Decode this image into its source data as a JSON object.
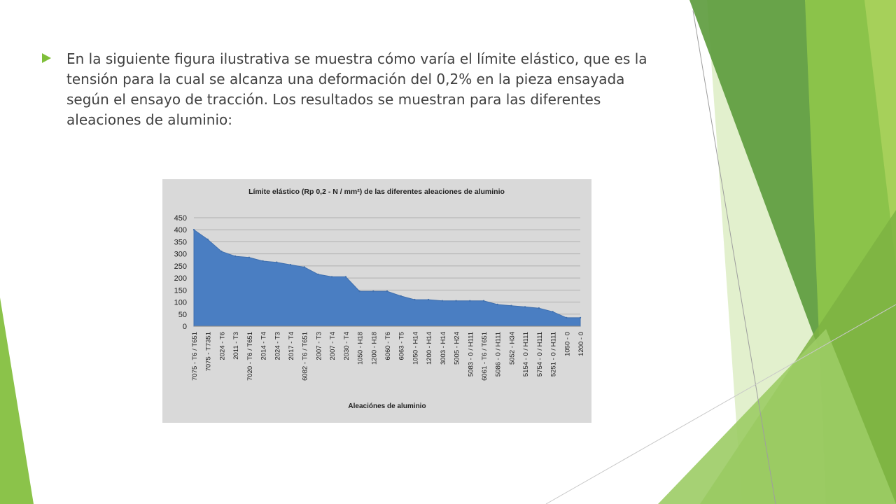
{
  "slide": {
    "bullet_text": "En la siguiente figura ilustrativa se muestra cómo varía el límite elástico, que es la tensión para la cual se alcanza una deformación del 0,2% en la pieza ensayada según el ensayo de tracción. Los resultados se muestran para las diferentes aleaciones de aluminio:",
    "accent_color": "#7fbf3a",
    "bullet_icon": "triangle-arrow-bullet"
  },
  "chart_data": {
    "type": "area",
    "title": "Límite elástico (Rp 0,2 - N / mm²) de las diferentes aleaciones de aluminio",
    "xlabel": "Aleaciónes de aluminio",
    "ylabel": "",
    "ylim": [
      0,
      450
    ],
    "yticks": [
      0,
      50,
      100,
      150,
      200,
      250,
      300,
      350,
      400,
      450
    ],
    "grid": true,
    "fill_color": "#4a7ec2",
    "categories": [
      "7075 - T6 / T651",
      "7075 - T7351",
      "2024 - T6",
      "2011 - T3",
      "7020 - T6 / T651",
      "2014 - T4",
      "2024 - T3",
      "2017 - T4",
      "6082 - T6 / T651",
      "2007 - T3",
      "2007 - T4",
      "2030 - T4",
      "1050 - H18",
      "1200 - H18",
      "6060 - T6",
      "6063 - T5",
      "1050 - H14",
      "1200 - H14",
      "3003 - H14",
      "5005 - H24",
      "5083 - 0 / H111",
      "6061 - T6 / T651",
      "5086 - 0 / H111",
      "5052 - H34",
      "5154 - 0 / H111",
      "5754 - 0 / H111",
      "5251 - 0 / H111",
      "1050 - 0",
      "1200 - 0"
    ],
    "values": [
      400,
      360,
      310,
      290,
      285,
      270,
      265,
      255,
      245,
      215,
      205,
      205,
      145,
      145,
      145,
      125,
      110,
      110,
      105,
      105,
      105,
      105,
      90,
      85,
      80,
      75,
      60,
      35,
      35
    ]
  }
}
